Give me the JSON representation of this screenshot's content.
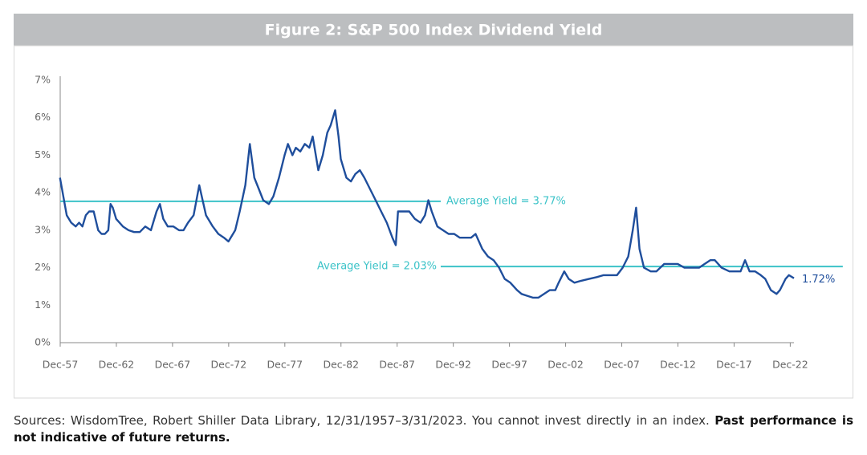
{
  "chart_data": {
    "type": "line",
    "title": "Figure 2: S&P 500 Index Dividend Yield",
    "x": [
      1957.9,
      1958.2,
      1958.5,
      1958.9,
      1959.3,
      1959.6,
      1959.9,
      1960.2,
      1960.5,
      1960.9,
      1961.3,
      1961.6,
      1961.9,
      1962.2,
      1962.4,
      1962.6,
      1962.9,
      1963.5,
      1964.0,
      1964.5,
      1965.0,
      1965.5,
      1966.0,
      1966.5,
      1966.8,
      1967.1,
      1967.5,
      1968.0,
      1968.5,
      1968.9,
      1969.3,
      1969.8,
      1970.3,
      1970.6,
      1970.9,
      1971.5,
      1972.0,
      1972.5,
      1972.9,
      1973.5,
      1973.9,
      1974.4,
      1974.8,
      1975.2,
      1975.6,
      1976.0,
      1976.5,
      1976.9,
      1977.4,
      1977.9,
      1978.2,
      1978.6,
      1978.9,
      1979.3,
      1979.7,
      1980.1,
      1980.4,
      1980.9,
      1981.3,
      1981.7,
      1982.0,
      1982.4,
      1982.7,
      1982.9,
      1983.4,
      1983.8,
      1984.2,
      1984.6,
      1985.0,
      1985.5,
      1986.0,
      1986.5,
      1987.0,
      1987.5,
      1987.8,
      1988.0,
      1988.5,
      1989.0,
      1989.5,
      1990.0,
      1990.4,
      1990.7,
      1991.0,
      1991.5,
      1992.0,
      1992.5,
      1993.0,
      1993.5,
      1994.0,
      1994.5,
      1994.9,
      1995.5,
      1996.0,
      1996.5,
      1997.0,
      1997.5,
      1998.0,
      1998.6,
      1999.0,
      1999.5,
      2000.0,
      2000.5,
      2001.0,
      2001.5,
      2002.0,
      2002.3,
      2002.8,
      2003.2,
      2003.7,
      2004.3,
      2005.0,
      2005.7,
      2006.3,
      2007.0,
      2007.5,
      2008.0,
      2008.5,
      2008.9,
      2009.2,
      2009.5,
      2009.9,
      2010.5,
      2011.0,
      2011.7,
      2012.3,
      2012.9,
      2013.5,
      2014.2,
      2014.8,
      2015.3,
      2015.8,
      2016.2,
      2016.8,
      2017.5,
      2018.0,
      2018.5,
      2018.9,
      2019.3,
      2019.8,
      2020.3,
      2020.7,
      2021.2,
      2021.7,
      2022.0,
      2022.5,
      2022.8,
      2023.25
    ],
    "series": [
      {
        "name": "S&P 500 Index Dividend Yield",
        "color": "#1f4e9c",
        "values": [
          4.4,
          3.9,
          3.4,
          3.2,
          3.1,
          3.2,
          3.1,
          3.4,
          3.5,
          3.5,
          3.0,
          2.9,
          2.9,
          3.0,
          3.7,
          3.6,
          3.3,
          3.1,
          3.0,
          2.95,
          2.95,
          3.1,
          3.0,
          3.5,
          3.7,
          3.3,
          3.1,
          3.1,
          3.0,
          3.0,
          3.2,
          3.4,
          4.2,
          3.8,
          3.4,
          3.1,
          2.9,
          2.8,
          2.7,
          3.0,
          3.5,
          4.2,
          5.3,
          4.4,
          4.1,
          3.8,
          3.7,
          3.9,
          4.4,
          5.0,
          5.3,
          5.0,
          5.2,
          5.1,
          5.3,
          5.2,
          5.5,
          4.6,
          5.0,
          5.6,
          5.8,
          6.2,
          5.5,
          4.9,
          4.4,
          4.3,
          4.5,
          4.6,
          4.4,
          4.1,
          3.8,
          3.5,
          3.2,
          2.8,
          2.6,
          3.5,
          3.5,
          3.5,
          3.3,
          3.2,
          3.4,
          3.8,
          3.5,
          3.1,
          3.0,
          2.9,
          2.9,
          2.8,
          2.8,
          2.8,
          2.9,
          2.5,
          2.3,
          2.2,
          2.0,
          1.7,
          1.6,
          1.4,
          1.3,
          1.25,
          1.2,
          1.2,
          1.3,
          1.4,
          1.4,
          1.6,
          1.9,
          1.7,
          1.6,
          1.65,
          1.7,
          1.75,
          1.8,
          1.8,
          1.8,
          2.0,
          2.3,
          3.0,
          3.6,
          2.5,
          2.0,
          1.9,
          1.9,
          2.1,
          2.1,
          2.1,
          2.0,
          2.0,
          2.0,
          2.1,
          2.2,
          2.2,
          2.0,
          1.9,
          1.9,
          1.9,
          2.2,
          1.9,
          1.9,
          1.8,
          1.7,
          1.4,
          1.3,
          1.4,
          1.7,
          1.8,
          1.72
        ]
      }
    ],
    "last_value_label": "1.72%",
    "reference_lines": [
      {
        "label": "Average Yield = 3.77%",
        "value": 3.77,
        "x": [
          1957.92,
          1991.8
        ],
        "color": "#3cc3c8"
      },
      {
        "label": "Average Yield = 2.03%",
        "value": 2.03,
        "x": [
          1991.8,
          2027.6
        ],
        "color": "#3cc3c8"
      }
    ],
    "xlim": [
      1957.92,
      2023.25
    ],
    "xticks": [
      {
        "value": 1957.92,
        "label": "Dec-57"
      },
      {
        "value": 1962.92,
        "label": "Dec-62"
      },
      {
        "value": 1967.92,
        "label": "Dec-67"
      },
      {
        "value": 1972.92,
        "label": "Dec-72"
      },
      {
        "value": 1977.92,
        "label": "Dec-77"
      },
      {
        "value": 1982.92,
        "label": "Dec-82"
      },
      {
        "value": 1987.92,
        "label": "Dec-87"
      },
      {
        "value": 1992.92,
        "label": "Dec-92"
      },
      {
        "value": 1997.92,
        "label": "Dec-97"
      },
      {
        "value": 2002.92,
        "label": "Dec-02"
      },
      {
        "value": 2007.92,
        "label": "Dec-07"
      },
      {
        "value": 2012.92,
        "label": "Dec-12"
      },
      {
        "value": 2017.92,
        "label": "Dec-17"
      },
      {
        "value": 2022.92,
        "label": "Dec-22"
      }
    ],
    "ylim": [
      0,
      7
    ],
    "yticks": [
      {
        "value": 0,
        "label": "0%"
      },
      {
        "value": 1,
        "label": "1%"
      },
      {
        "value": 2,
        "label": "2%"
      },
      {
        "value": 3,
        "label": "3%"
      },
      {
        "value": 4,
        "label": "4%"
      },
      {
        "value": 5,
        "label": "5%"
      },
      {
        "value": 6,
        "label": "6%"
      },
      {
        "value": 7,
        "label": "7%"
      }
    ],
    "grid": false
  },
  "footer": {
    "source": "Sources: WisdomTree, Robert Shiller Data Library, 12/31/1957–3/31/2023. You cannot invest directly in an index.",
    "disclaimer": "Past performance is not indicative of future returns."
  }
}
